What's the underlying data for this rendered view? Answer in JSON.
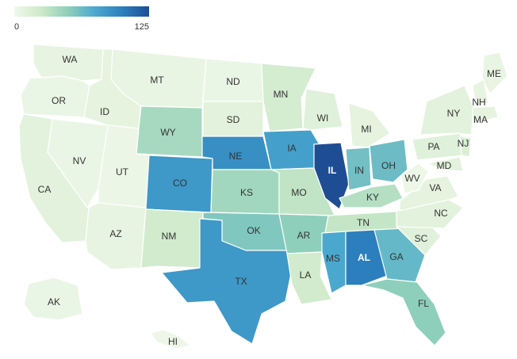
{
  "legend": {
    "min_label": "0",
    "max_label": "125",
    "min": 0,
    "max": 125,
    "colors": [
      "#f0f8ea",
      "#cde9c8",
      "#8ecfbb",
      "#4aa8cf",
      "#2c7fbd",
      "#1f4d94"
    ]
  },
  "states": [
    {
      "abbr": "WA",
      "value": 6
    },
    {
      "abbr": "OR",
      "value": 4
    },
    {
      "abbr": "CA",
      "value": 10
    },
    {
      "abbr": "NV",
      "value": 4
    },
    {
      "abbr": "ID",
      "value": 8
    },
    {
      "abbr": "MT",
      "value": 5
    },
    {
      "abbr": "WY",
      "value": 40
    },
    {
      "abbr": "UT",
      "value": 3
    },
    {
      "abbr": "AZ",
      "value": 6
    },
    {
      "abbr": "CO",
      "value": 85
    },
    {
      "abbr": "NM",
      "value": 22
    },
    {
      "abbr": "ND",
      "value": 4
    },
    {
      "abbr": "SD",
      "value": 10
    },
    {
      "abbr": "NE",
      "value": 90
    },
    {
      "abbr": "KS",
      "value": 42
    },
    {
      "abbr": "OK",
      "value": 55
    },
    {
      "abbr": "TX",
      "value": 85
    },
    {
      "abbr": "MN",
      "value": 20
    },
    {
      "abbr": "IA",
      "value": 80
    },
    {
      "abbr": "MO",
      "value": 30
    },
    {
      "abbr": "AR",
      "value": 50
    },
    {
      "abbr": "LA",
      "value": 22
    },
    {
      "abbr": "WI",
      "value": 12
    },
    {
      "abbr": "IL",
      "value": 125
    },
    {
      "abbr": "MI",
      "value": 8
    },
    {
      "abbr": "IN",
      "value": 60
    },
    {
      "abbr": "OH",
      "value": 62
    },
    {
      "abbr": "KY",
      "value": 35
    },
    {
      "abbr": "TN",
      "value": 28
    },
    {
      "abbr": "MS",
      "value": 75
    },
    {
      "abbr": "AL",
      "value": 100
    },
    {
      "abbr": "GA",
      "value": 65
    },
    {
      "abbr": "FL",
      "value": 50
    },
    {
      "abbr": "SC",
      "value": 12
    },
    {
      "abbr": "NC",
      "value": 10
    },
    {
      "abbr": "VA",
      "value": 8
    },
    {
      "abbr": "WV",
      "value": 2
    },
    {
      "abbr": "PA",
      "value": 12
    },
    {
      "abbr": "NY",
      "value": 10
    },
    {
      "abbr": "MD",
      "value": 10
    },
    {
      "abbr": "NJ",
      "value": 15
    },
    {
      "abbr": "ME",
      "value": 5
    },
    {
      "abbr": "NH",
      "value": 6
    },
    {
      "abbr": "MA",
      "value": 8
    },
    {
      "abbr": "AK",
      "value": 4
    },
    {
      "abbr": "HI",
      "value": 2
    }
  ]
}
